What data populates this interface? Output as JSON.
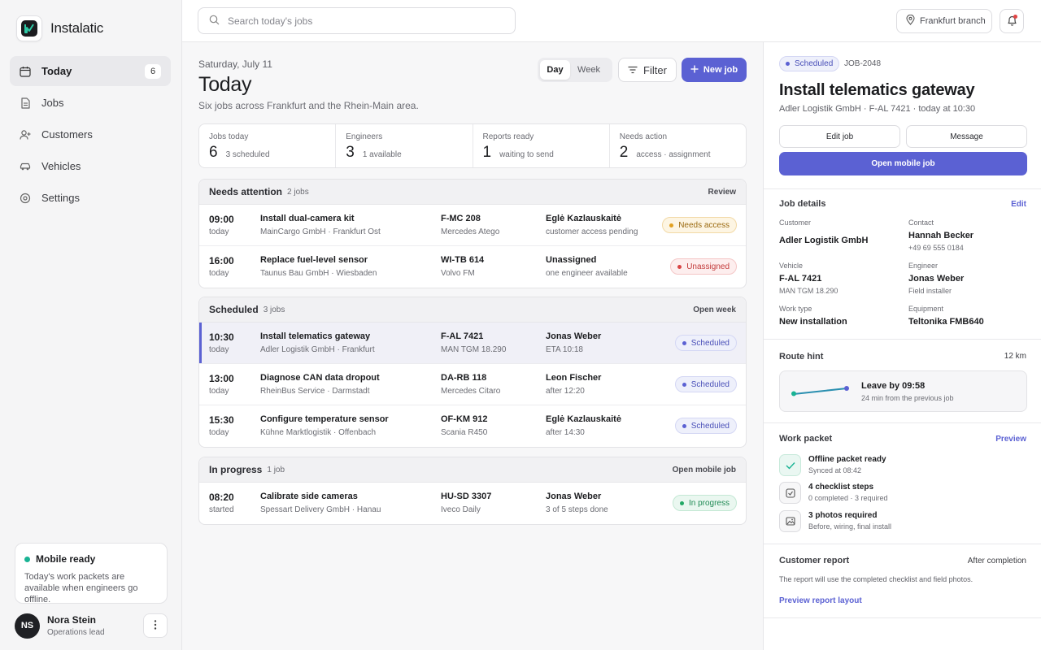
{
  "app": {
    "name": "Instalatic"
  },
  "sidebar": {
    "items": [
      {
        "label": "Today",
        "icon": "calendar-icon",
        "badge": "6",
        "active": true
      },
      {
        "label": "Jobs",
        "icon": "document-icon"
      },
      {
        "label": "Customers",
        "icon": "user-plus-icon"
      },
      {
        "label": "Vehicles",
        "icon": "car-icon"
      },
      {
        "label": "Settings",
        "icon": "gear-icon"
      }
    ],
    "mobile": {
      "title": "Mobile ready",
      "text": "Today's work packets are available when engineers go offline."
    },
    "user": {
      "initials": "NS",
      "name": "Nora Stein",
      "role": "Operations lead"
    }
  },
  "topbar": {
    "search_placeholder": "Search today's jobs",
    "branch": "Frankfurt branch"
  },
  "main": {
    "date": "Saturday, July 11",
    "title": "Today",
    "subtitle": "Six jobs across Frankfurt and the Rhein-Main area.",
    "view": {
      "day": "Day",
      "week": "Week",
      "selected": "Day"
    },
    "filter_label": "Filter",
    "new_job_label": "New job",
    "stats": [
      {
        "label": "Jobs today",
        "value": "6",
        "note": "3 scheduled"
      },
      {
        "label": "Engineers",
        "value": "3",
        "note": "1 available"
      },
      {
        "label": "Reports ready",
        "value": "1",
        "note": "waiting to send"
      },
      {
        "label": "Needs action",
        "value": "2",
        "note": "access · assignment"
      }
    ],
    "groups": [
      {
        "title": "Needs attention",
        "count": "2 jobs",
        "action": "Review",
        "jobs": [
          {
            "time": "09:00",
            "when": "today",
            "name": "Install dual-camera kit",
            "client": "MainCargo GmbH · Frankfurt Ost",
            "plate": "F-MC 208",
            "model": "Mercedes Atego",
            "engineer": "Eglė Kazlauskaitė",
            "note": "customer access pending",
            "status": "Needs access",
            "status_kind": "access"
          },
          {
            "time": "16:00",
            "when": "today",
            "name": "Replace fuel-level sensor",
            "client": "Taunus Bau GmbH · Wiesbaden",
            "plate": "WI-TB 614",
            "model": "Volvo FM",
            "engineer": "Unassigned",
            "note": "one engineer available",
            "status": "Unassigned",
            "status_kind": "unassigned"
          }
        ]
      },
      {
        "title": "Scheduled",
        "count": "3 jobs",
        "action": "Open week",
        "jobs": [
          {
            "time": "10:30",
            "when": "today",
            "name": "Install telematics gateway",
            "client": "Adler Logistik GmbH · Frankfurt",
            "plate": "F-AL 7421",
            "model": "MAN TGM 18.290",
            "engineer": "Jonas Weber",
            "note": "ETA 10:18",
            "status": "Scheduled",
            "status_kind": "scheduled",
            "selected": true
          },
          {
            "time": "13:00",
            "when": "today",
            "name": "Diagnose CAN data dropout",
            "client": "RheinBus Service · Darmstadt",
            "plate": "DA-RB 118",
            "model": "Mercedes Citaro",
            "engineer": "Leon Fischer",
            "note": "after 12:20",
            "status": "Scheduled",
            "status_kind": "scheduled"
          },
          {
            "time": "15:30",
            "when": "today",
            "name": "Configure temperature sensor",
            "client": "Kühne Marktlogistik · Offenbach",
            "plate": "OF-KM 912",
            "model": "Scania R450",
            "engineer": "Eglė Kazlauskaitė",
            "note": "after 14:30",
            "status": "Scheduled",
            "status_kind": "scheduled"
          }
        ]
      },
      {
        "title": "In progress",
        "count": "1 job",
        "action": "Open mobile job",
        "jobs": [
          {
            "time": "08:20",
            "when": "started",
            "name": "Calibrate side cameras",
            "client": "Spessart Delivery GmbH · Hanau",
            "plate": "HU-SD 3307",
            "model": "Iveco Daily",
            "engineer": "Jonas Weber",
            "note": "3 of 5 steps done",
            "status": "In progress",
            "status_kind": "progress"
          }
        ]
      }
    ]
  },
  "panel": {
    "status": "Scheduled",
    "job_id": "JOB-2048",
    "title": "Install telematics gateway",
    "meta": "Adler Logistik GmbH · F-AL 7421 · today at 10:30",
    "edit_job": "Edit job",
    "message": "Message",
    "open_mobile": "Open mobile job",
    "details": {
      "title": "Job details",
      "edit": "Edit",
      "customer_label": "Customer",
      "customer": "Adler Logistik GmbH",
      "contact_label": "Contact",
      "contact": "Hannah Becker",
      "contact_phone": "+49 69 555 0184",
      "vehicle_label": "Vehicle",
      "vehicle": "F-AL 7421",
      "vehicle_model": "MAN TGM 18.290",
      "engineer_label": "Engineer",
      "engineer": "Jonas Weber",
      "engineer_role": "Field installer",
      "worktype_label": "Work type",
      "worktype": "New installation",
      "equipment_label": "Equipment",
      "equipment": "Teltonika FMB640"
    },
    "route": {
      "title": "Route hint",
      "distance": "12 km",
      "leave": "Leave by 09:58",
      "sub": "24 min from the previous job"
    },
    "packet": {
      "title": "Work packet",
      "preview": "Preview",
      "items": [
        {
          "title": "Offline packet ready",
          "sub": "Synced at 08:42",
          "icon": "check-icon"
        },
        {
          "title": "4 checklist steps",
          "sub": "0 completed · 3 required",
          "icon": "checkbox-icon"
        },
        {
          "title": "3 photos required",
          "sub": "Before, wiring, final install",
          "icon": "image-icon"
        }
      ]
    },
    "report": {
      "title": "Customer report",
      "aside": "After completion",
      "text": "The report will use the completed checklist and field photos.",
      "link": "Preview report layout"
    }
  },
  "colors": {
    "accent": "#5b61d3",
    "success": "#19b394",
    "warning": "#e2a020",
    "danger": "#d94444"
  }
}
